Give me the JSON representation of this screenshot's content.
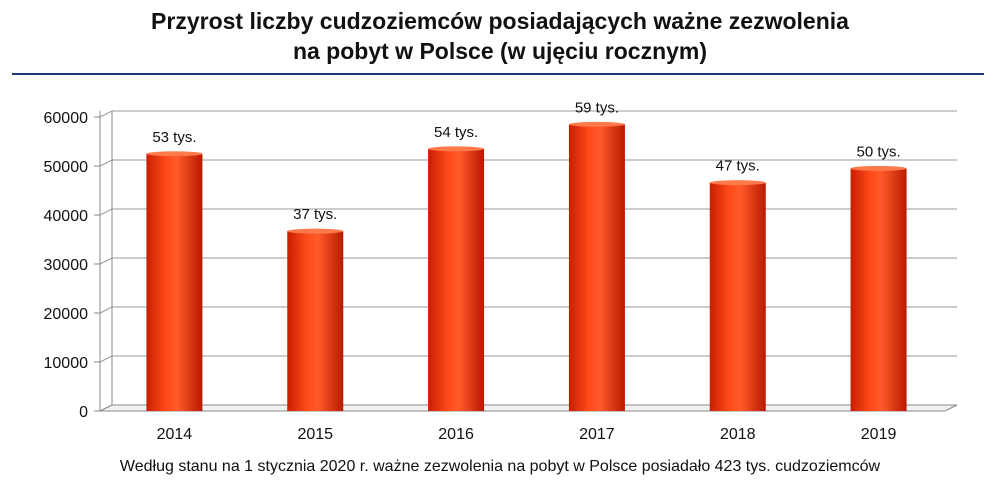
{
  "title_line1": "Przyrost liczby cudzoziemców posiadających ważne zezwolenia",
  "title_line2": "na pobyt w Polsce (w ujęciu rocznym)",
  "caption": "Według stanu na 1 stycznia 2020 r. ważne zezwolenia na pobyt w Polsce posiadało 423 tys. cudzoziemców",
  "colors": {
    "bar": "#ff3a12",
    "bar_dark": "#c81e00",
    "grid": "#9a9a9a",
    "rule": "#1f3a7a"
  },
  "chart_data": {
    "type": "bar",
    "title": "Przyrost liczby cudzoziemców posiadających ważne zezwolenia na pobyt w Polsce (w ujęciu rocznym)",
    "categories": [
      "2014",
      "2015",
      "2016",
      "2017",
      "2018",
      "2019"
    ],
    "values": [
      52500,
      36700,
      53500,
      58500,
      46600,
      49500
    ],
    "data_labels": [
      "53 tys.",
      "37 tys.",
      "54 tys.",
      "59 tys.",
      "47 tys.",
      "50 tys."
    ],
    "yticks": [
      "0",
      "10000",
      "20000",
      "30000",
      "40000",
      "50000",
      "60000"
    ],
    "ylim": [
      0,
      60000
    ],
    "grid": true,
    "xlabel": "",
    "ylabel": ""
  }
}
